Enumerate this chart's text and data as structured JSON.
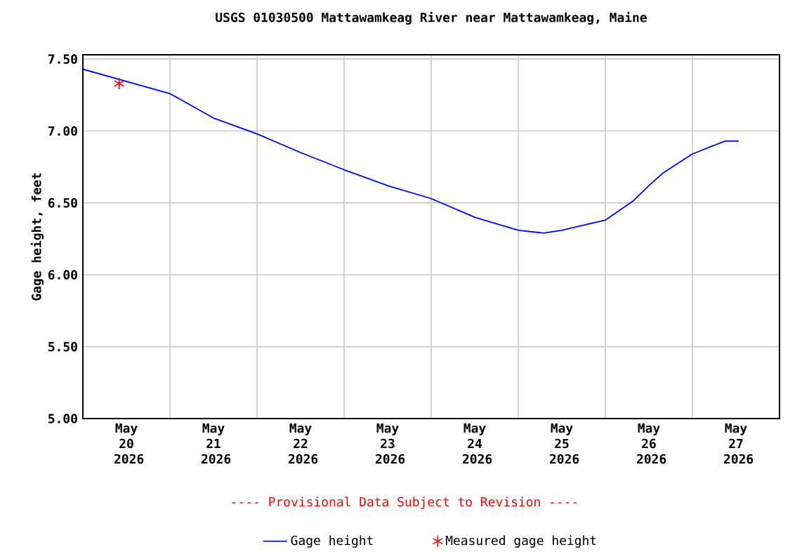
{
  "chart_data": {
    "type": "line",
    "title": "USGS 01030500 Mattawamkeag River near Mattawamkeag, Maine",
    "ylabel": "Gage height, feet",
    "annotations": [
      "---- Provisional Data Subject to Revision ----"
    ],
    "xlim": [
      "2026-05-20T00:00",
      "2026-05-28T00:00"
    ],
    "xticks": [
      {
        "value": "2026-05-20T12:00",
        "label": "May 20 2026"
      },
      {
        "value": "2026-05-21T12:00",
        "label": "May 21 2026"
      },
      {
        "value": "2026-05-22T12:00",
        "label": "May 22 2026"
      },
      {
        "value": "2026-05-23T12:00",
        "label": "May 23 2026"
      },
      {
        "value": "2026-05-24T12:00",
        "label": "May 24 2026"
      },
      {
        "value": "2026-05-25T12:00",
        "label": "May 25 2026"
      },
      {
        "value": "2026-05-26T12:00",
        "label": "May 26 2026"
      },
      {
        "value": "2026-05-27T12:00",
        "label": "May 27 2026"
      },
      {
        "value": "2026-05-21T00:00",
        "label": null
      },
      {
        "value": "2026-05-22T00:00",
        "label": null
      },
      {
        "value": "2026-05-23T00:00",
        "label": null
      },
      {
        "value": "2026-05-24T00:00",
        "label": null
      },
      {
        "value": "2026-05-25T00:00",
        "label": null
      },
      {
        "value": "2026-05-26T00:00",
        "label": null
      },
      {
        "value": "2026-05-27T00:00",
        "label": null
      }
    ],
    "ylim": [
      5.0,
      7.53
    ],
    "yticks": [
      {
        "value": 5.0,
        "label": "5.00"
      },
      {
        "value": 5.5,
        "label": "5.50"
      },
      {
        "value": 6.0,
        "label": "6.00"
      },
      {
        "value": 6.5,
        "label": "6.50"
      },
      {
        "value": 7.0,
        "label": "7.00"
      },
      {
        "value": 7.5,
        "label": "7.50"
      }
    ],
    "grid": true,
    "legend": "bottom",
    "series": [
      {
        "name": "Gage height",
        "type": "line",
        "color": "#0000ff",
        "marker": "none",
        "line_style": "solid",
        "x": [
          "2026-05-20T00:00",
          "2026-05-21T00:00",
          "2026-05-21T12:00",
          "2026-05-22T00:00",
          "2026-05-22T12:00",
          "2026-05-23T00:00",
          "2026-05-23T12:00",
          "2026-05-24T00:00",
          "2026-05-24T12:00",
          "2026-05-25T00:00",
          "2026-05-25T07:00",
          "2026-05-25T12:00",
          "2026-05-26T00:00",
          "2026-05-26T07:30",
          "2026-05-26T12:00",
          "2026-05-26T16:00",
          "2026-05-27T00:00",
          "2026-05-27T09:00",
          "2026-05-27T12:45"
        ],
        "values": [
          7.43,
          7.26,
          7.09,
          6.98,
          6.85,
          6.73,
          6.62,
          6.53,
          6.4,
          6.31,
          6.29,
          6.31,
          6.38,
          6.51,
          6.62,
          6.71,
          6.84,
          6.93,
          6.93
        ]
      },
      {
        "name": "Measured gage height",
        "type": "scatter",
        "color": "#ff0000",
        "marker": "cross",
        "x": [
          "2026-05-20T10:00"
        ],
        "values": [
          7.33
        ]
      }
    ]
  }
}
